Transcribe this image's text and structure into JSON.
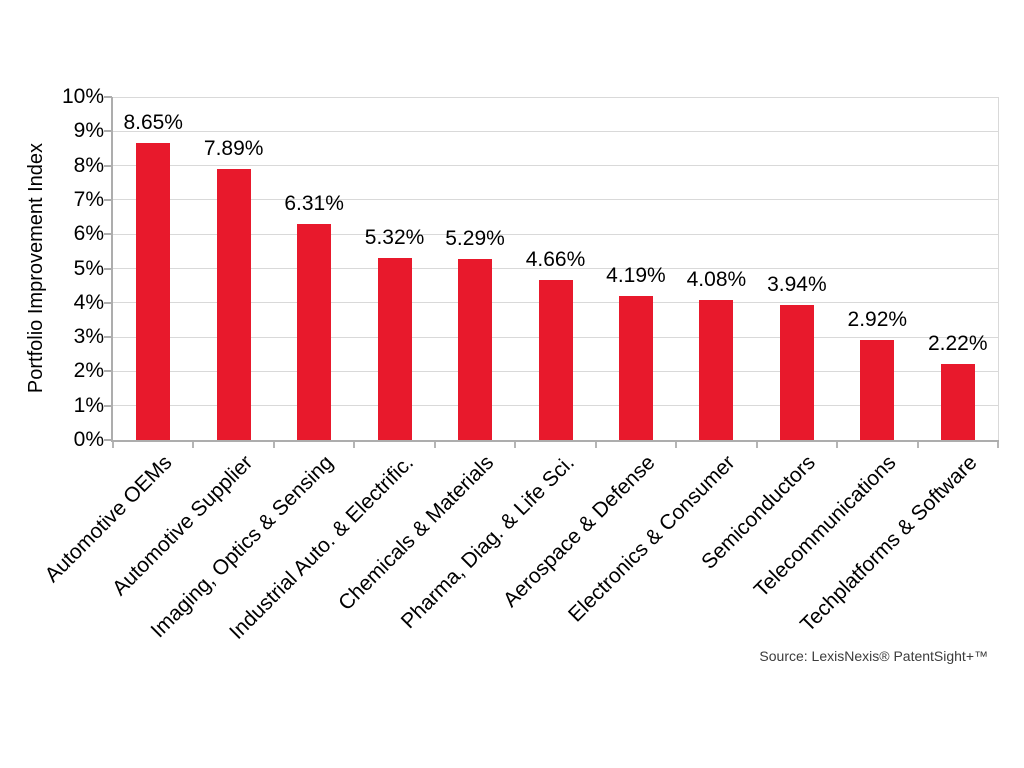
{
  "chart_data": {
    "type": "bar",
    "title": "",
    "xlabel": "",
    "ylabel": "Portfolio Improvement Index",
    "ylim": [
      0,
      10
    ],
    "ytick_step": 1,
    "ytick_suffix": "%",
    "grid": true,
    "legend": "none",
    "bar_color": "#e8192c",
    "categories": [
      "Automotive OEMs",
      "Automotive Supplier",
      "Imaging, Optics & Sensing",
      "Industrial Auto. & Electrific.",
      "Chemicals & Materials",
      "Pharma, Diag. & Life Sci.",
      "Aerospace & Defense",
      "Electronics & Consumer",
      "Semiconductors",
      "Telecommunications",
      "Techplatforms & Software"
    ],
    "values": [
      8.65,
      7.89,
      6.31,
      5.32,
      5.29,
      4.66,
      4.19,
      4.08,
      3.94,
      2.92,
      2.22
    ],
    "value_labels": [
      "8.65%",
      "7.89%",
      "6.31%",
      "5.32%",
      "5.29%",
      "4.66%",
      "4.19%",
      "4.08%",
      "3.94%",
      "2.92%",
      "2.22%"
    ]
  },
  "source": {
    "label": "Source: LexisNexis® PatentSight+™"
  },
  "colors": {
    "bar": "#e8192c",
    "gridline": "#d9d9d9",
    "axis": "#adadad",
    "text": "#000000",
    "source_text": "#3c3c3c",
    "background": "#ffffff"
  }
}
